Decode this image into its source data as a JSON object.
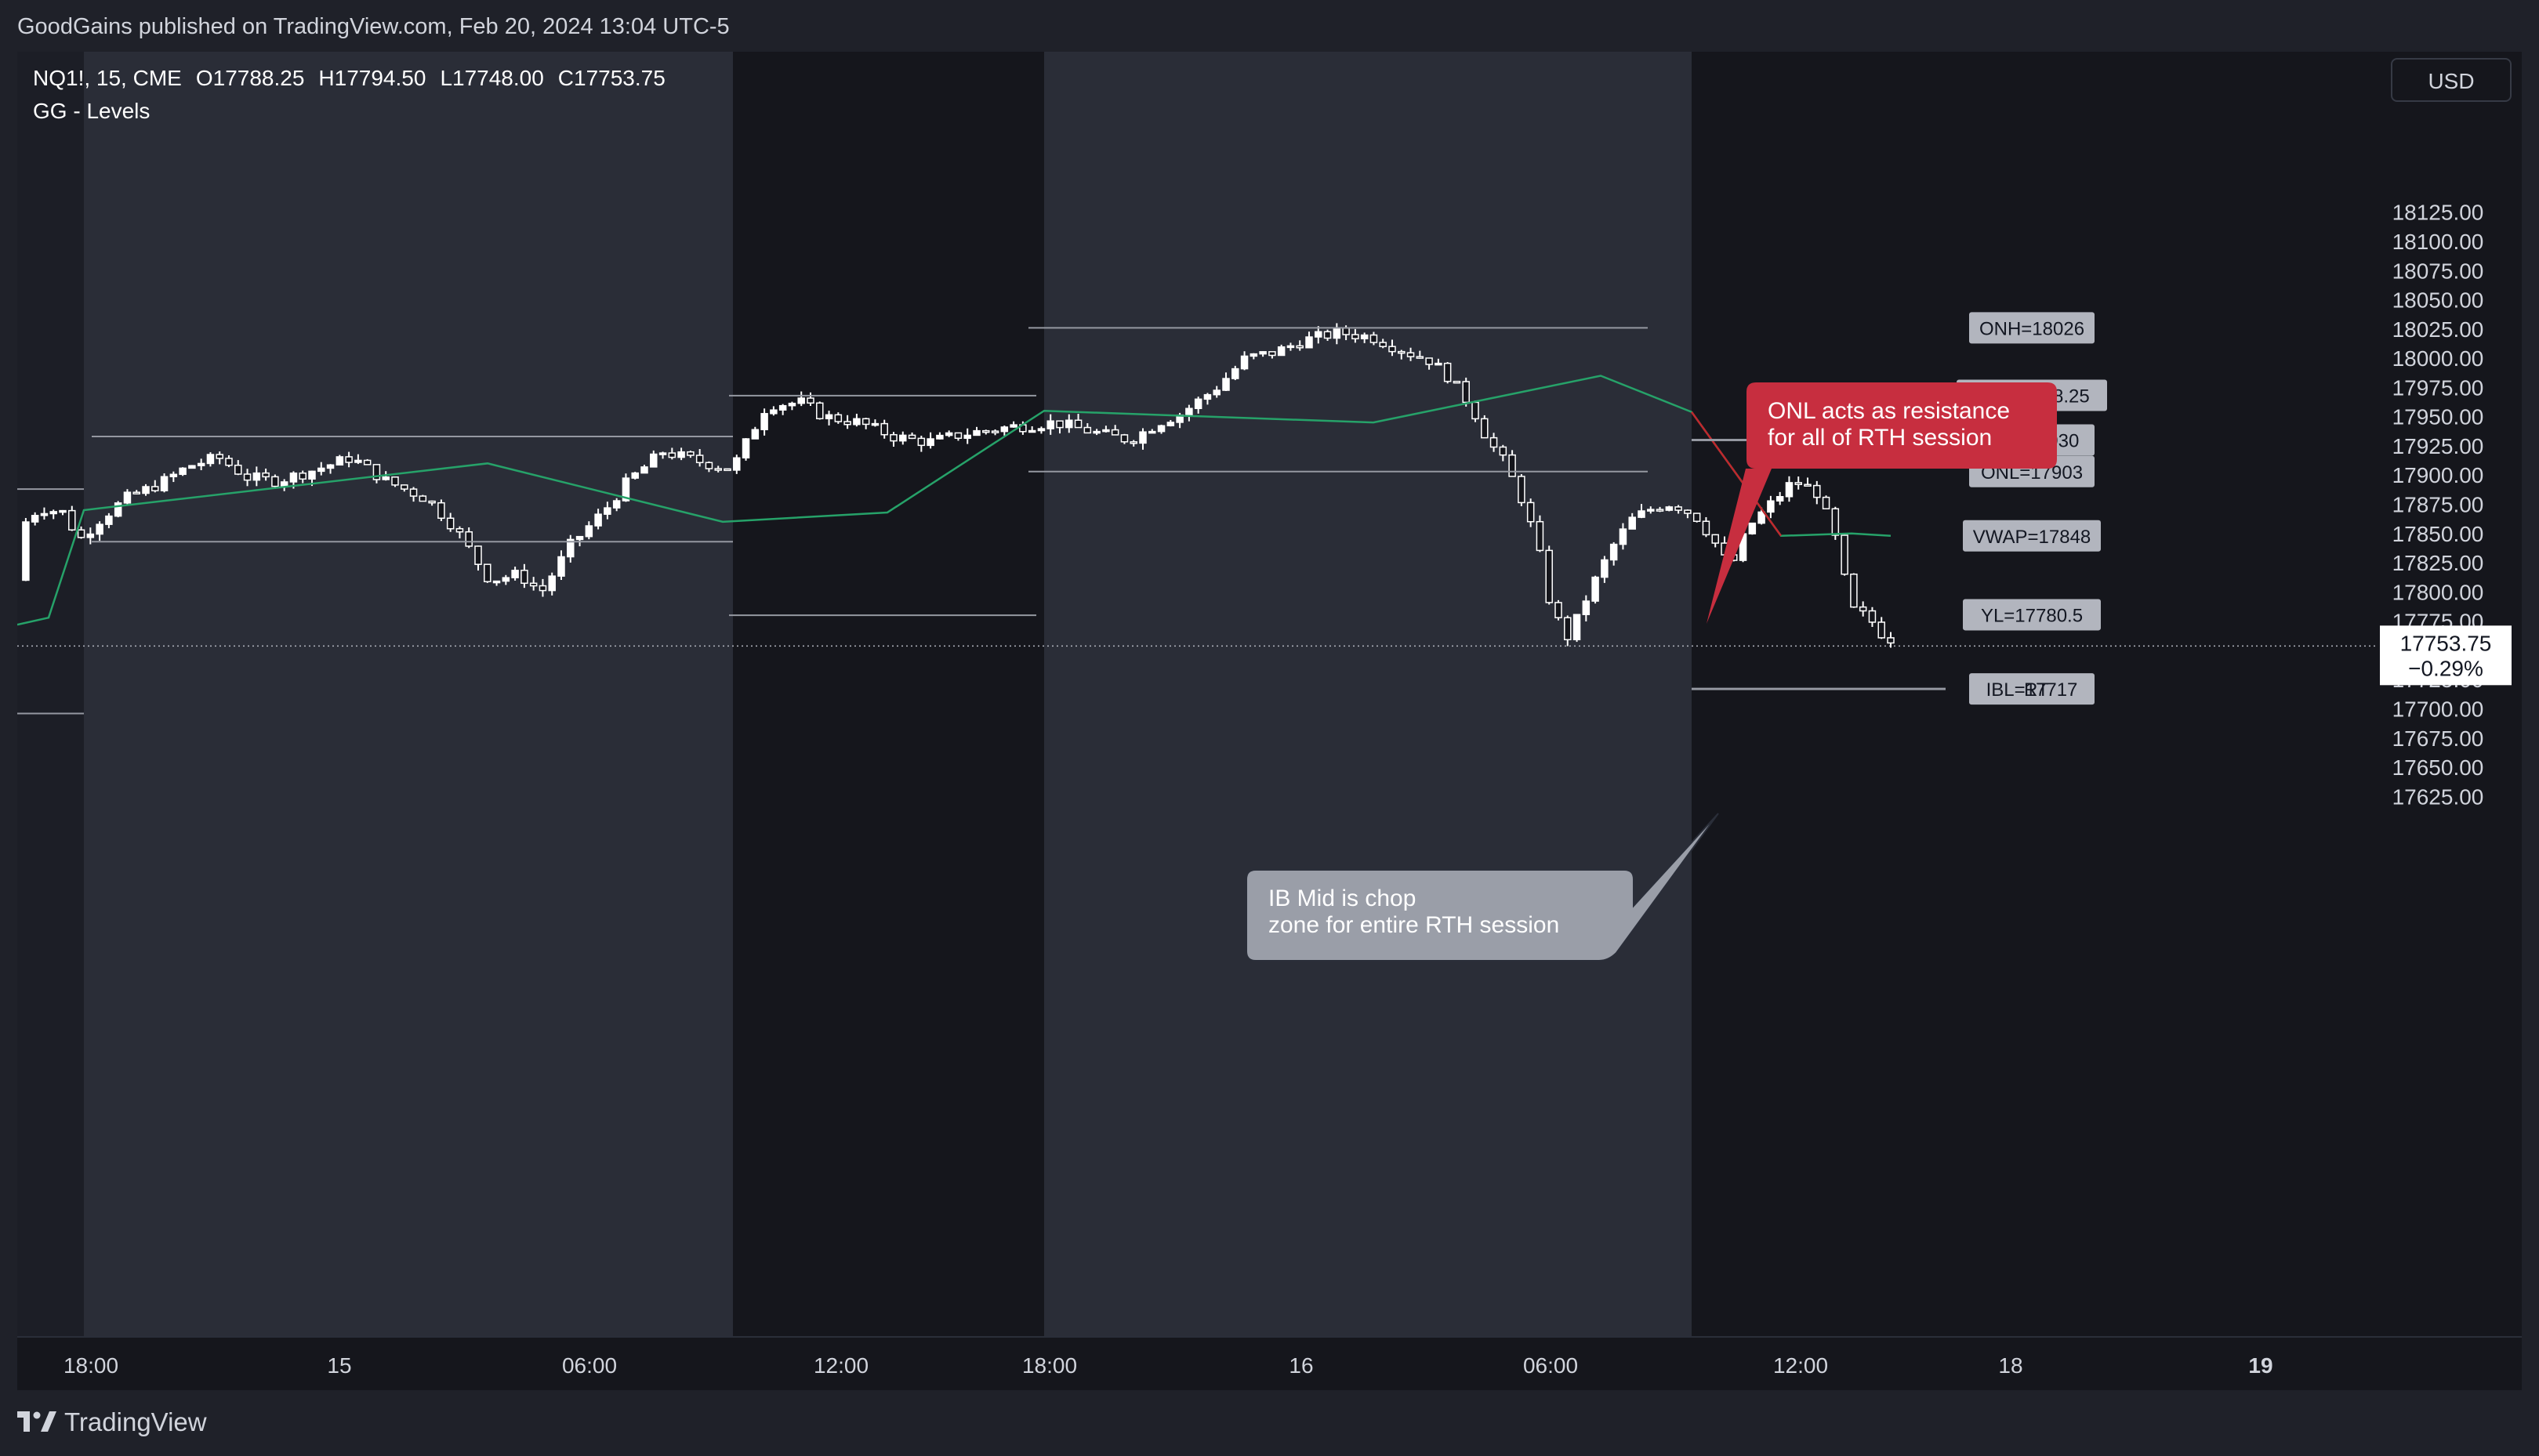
{
  "header": {
    "published_text": "GoodGains published on TradingView.com, Feb 20, 2024 13:04 UTC-5"
  },
  "legend": {
    "symbol": "NQ1!, 15, CME",
    "open": "O17788.25",
    "high": "H17794.50",
    "low": "L17748.00",
    "close": "C17753.75",
    "indicator": "GG - Levels"
  },
  "currency": "USD",
  "colors": {
    "background": "#15161c",
    "session_band": "#2a2d37",
    "up_candle": "#ffffff",
    "vwap_green": "#26a269",
    "vwap_red": "#c0272d",
    "level_line": "#9598a1",
    "callout_red": "#c72e3f",
    "callout_grey": "#9a9ea8"
  },
  "price_axis": {
    "ticks": [
      "18125.00",
      "18100.00",
      "18075.00",
      "18050.00",
      "18025.00",
      "18000.00",
      "17975.00",
      "17950.00",
      "17925.00",
      "17900.00",
      "17875.00",
      "17850.00",
      "17825.00",
      "17800.00",
      "17775.00",
      "17725.00",
      "17700.00",
      "17675.00",
      "17650.00",
      "17625.00"
    ],
    "last_price": "17753.75",
    "last_change": "−0.29%"
  },
  "time_axis": {
    "ticks": [
      "18:00",
      "15",
      "06:00",
      "12:00",
      "18:00",
      "16",
      "06:00",
      "12:00",
      "18",
      "19"
    ]
  },
  "levels": [
    {
      "label": "ONH=18026",
      "price": 18026
    },
    {
      "label": "YH=17968.25",
      "price": 17968.25
    },
    {
      "label": "IBH=17930",
      "price": 17930
    },
    {
      "label": "ONL=17903",
      "price": 17903
    },
    {
      "label": "VWAP=17848",
      "price": 17848
    },
    {
      "label": "YL=17780.5",
      "price": 17780.5
    },
    {
      "label": "IBL=17717",
      "price": 17717
    }
  ],
  "level_fragments": [
    "O",
    "RT"
  ],
  "annotations": {
    "onl": {
      "line1": "ONL acts as resistance",
      "line2": "for all of RTH session"
    },
    "ibmid": {
      "line1": "IB Mid is chop",
      "line2": "zone for entire RTH session"
    }
  },
  "footer": {
    "brand": "TradingView",
    "logo_icon": "tradingview-logo-icon"
  }
}
